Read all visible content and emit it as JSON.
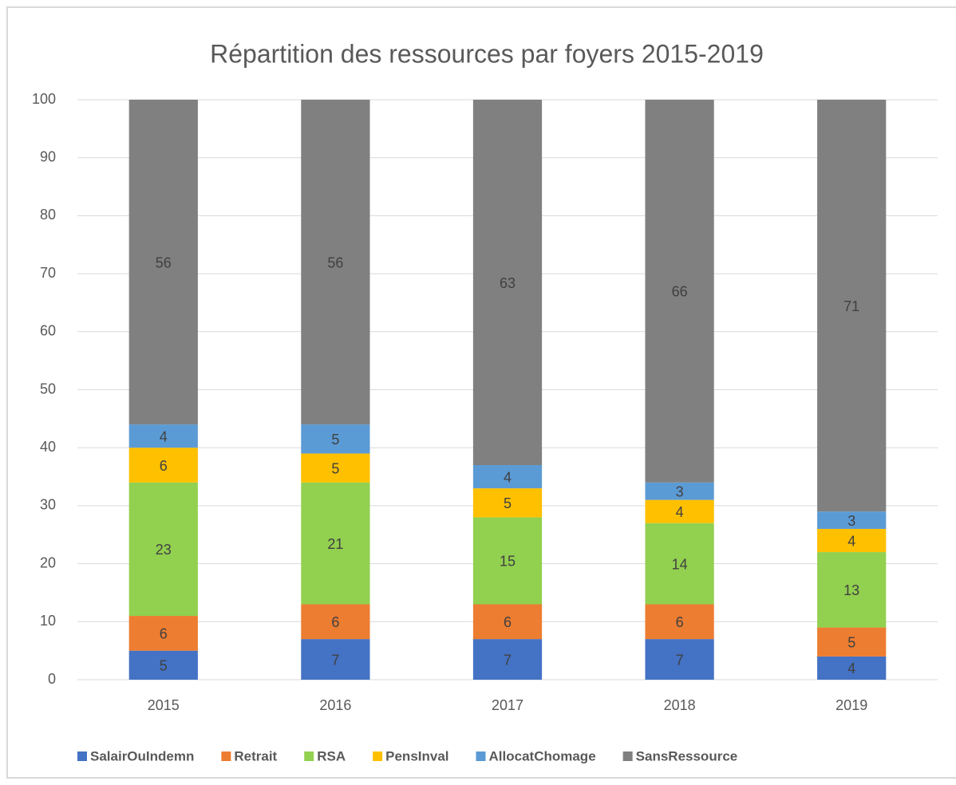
{
  "chart_data": {
    "type": "stacked_bar",
    "title": "Répartition des ressources par foyers 2015-2019",
    "categories": [
      "2015",
      "2016",
      "2017",
      "2018",
      "2019"
    ],
    "series": [
      {
        "name": "SalairOuIndemn",
        "color": "#4472c4",
        "values": [
          5,
          7,
          7,
          7,
          4
        ]
      },
      {
        "name": "Retrait",
        "color": "#ed7d31",
        "values": [
          6,
          6,
          6,
          6,
          5
        ]
      },
      {
        "name": "RSA",
        "color": "#92d050",
        "values": [
          23,
          21,
          15,
          14,
          13
        ]
      },
      {
        "name": "PensInval",
        "color": "#ffc000",
        "values": [
          6,
          5,
          5,
          4,
          4
        ]
      },
      {
        "name": "AllocatChomage",
        "color": "#5b9bd5",
        "values": [
          4,
          5,
          4,
          3,
          3
        ]
      },
      {
        "name": "SansRessource",
        "color": "#808080",
        "values": [
          56,
          56,
          63,
          66,
          71
        ]
      }
    ],
    "ylim": [
      0,
      100
    ],
    "yticks": [
      0,
      10,
      20,
      30,
      40,
      50,
      60,
      70,
      80,
      90,
      100
    ],
    "grid": true,
    "legend": "bottom"
  }
}
